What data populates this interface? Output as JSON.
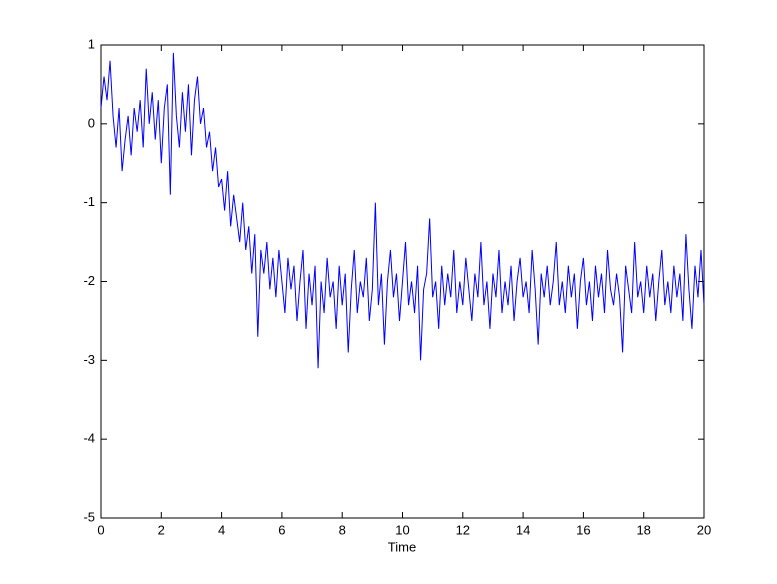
{
  "chart_data": {
    "type": "line",
    "xlabel": "Time",
    "color": "#0000ff",
    "xlim": [
      0,
      20
    ],
    "xticks": [
      0,
      2,
      4,
      6,
      8,
      10,
      12,
      14,
      16,
      18,
      20
    ],
    "ylim": [
      -5,
      1
    ],
    "yticks": [
      -5,
      -4,
      -3,
      -2,
      -1,
      0,
      1
    ],
    "x": [
      0,
      0.1,
      0.2,
      0.3,
      0.4,
      0.5,
      0.6,
      0.7,
      0.8,
      0.9,
      1,
      1.1,
      1.2,
      1.3,
      1.4,
      1.5,
      1.6,
      1.7,
      1.8,
      1.9,
      2,
      2.1,
      2.2,
      2.3,
      2.4,
      2.5,
      2.6,
      2.7,
      2.8,
      2.9,
      3,
      3.1,
      3.2,
      3.3,
      3.4,
      3.5,
      3.6,
      3.7,
      3.8,
      3.9,
      4,
      4.1,
      4.2,
      4.3,
      4.4,
      4.5,
      4.6,
      4.7,
      4.8,
      4.9,
      5,
      5.1,
      5.2,
      5.3,
      5.4,
      5.5,
      5.6,
      5.7,
      5.8,
      5.9,
      6,
      6.1,
      6.2,
      6.3,
      6.4,
      6.5,
      6.6,
      6.7,
      6.8,
      6.9,
      7,
      7.1,
      7.2,
      7.3,
      7.4,
      7.5,
      7.6,
      7.7,
      7.8,
      7.9,
      8,
      8.1,
      8.2,
      8.3,
      8.4,
      8.5,
      8.6,
      8.7,
      8.8,
      8.9,
      9,
      9.1,
      9.2,
      9.3,
      9.4,
      9.5,
      9.6,
      9.7,
      9.8,
      9.9,
      10,
      10.1,
      10.2,
      10.3,
      10.4,
      10.5,
      10.6,
      10.7,
      10.8,
      10.9,
      11,
      11.1,
      11.2,
      11.3,
      11.4,
      11.5,
      11.6,
      11.7,
      11.8,
      11.9,
      12,
      12.1,
      12.2,
      12.3,
      12.4,
      12.5,
      12.6,
      12.7,
      12.8,
      12.9,
      13,
      13.1,
      13.2,
      13.3,
      13.4,
      13.5,
      13.6,
      13.7,
      13.8,
      13.9,
      14,
      14.1,
      14.2,
      14.3,
      14.4,
      14.5,
      14.6,
      14.7,
      14.8,
      14.9,
      15,
      15.1,
      15.2,
      15.3,
      15.4,
      15.5,
      15.6,
      15.7,
      15.8,
      15.9,
      16,
      16.1,
      16.2,
      16.3,
      16.4,
      16.5,
      16.6,
      16.7,
      16.8,
      16.9,
      17,
      17.1,
      17.2,
      17.3,
      17.4,
      17.5,
      17.6,
      17.7,
      17.8,
      17.9,
      18,
      18.1,
      18.2,
      18.3,
      18.4,
      18.5,
      18.6,
      18.7,
      18.8,
      18.9,
      19,
      19.1,
      19.2,
      19.3,
      19.4,
      19.5,
      19.6,
      19.7,
      19.8,
      19.9,
      20
    ],
    "values": [
      0.2,
      0.6,
      0.3,
      0.8,
      0.1,
      -0.3,
      0.2,
      -0.6,
      -0.2,
      0.1,
      -0.4,
      0.2,
      -0.1,
      0.3,
      -0.3,
      0.7,
      0.0,
      0.4,
      -0.2,
      0.3,
      -0.5,
      0.2,
      0.5,
      -0.9,
      0.9,
      0.1,
      -0.3,
      0.4,
      -0.1,
      0.5,
      -0.4,
      0.3,
      0.6,
      0.0,
      0.2,
      -0.3,
      -0.1,
      -0.6,
      -0.3,
      -0.8,
      -0.7,
      -1.1,
      -0.6,
      -1.3,
      -0.9,
      -1.2,
      -1.5,
      -1.0,
      -1.6,
      -1.3,
      -1.9,
      -1.4,
      -2.7,
      -1.6,
      -1.9,
      -1.5,
      -2.1,
      -1.7,
      -2.2,
      -1.6,
      -2.0,
      -2.4,
      -1.7,
      -2.1,
      -1.8,
      -2.5,
      -2.0,
      -1.6,
      -2.6,
      -1.9,
      -2.3,
      -1.8,
      -3.1,
      -2.0,
      -2.4,
      -1.7,
      -2.2,
      -2.0,
      -2.6,
      -1.8,
      -2.3,
      -1.9,
      -2.9,
      -2.1,
      -1.6,
      -2.4,
      -2.0,
      -2.2,
      -1.7,
      -2.5,
      -2.1,
      -1.0,
      -2.3,
      -1.9,
      -2.8,
      -2.0,
      -1.6,
      -2.2,
      -1.9,
      -2.5,
      -2.0,
      -1.5,
      -2.3,
      -2.0,
      -2.4,
      -1.8,
      -3.0,
      -2.1,
      -1.9,
      -1.2,
      -2.2,
      -2.0,
      -2.6,
      -1.8,
      -2.3,
      -1.9,
      -2.2,
      -1.6,
      -2.4,
      -2.0,
      -2.3,
      -1.7,
      -2.1,
      -2.5,
      -1.9,
      -2.2,
      -1.5,
      -2.3,
      -2.0,
      -2.6,
      -1.9,
      -2.2,
      -1.6,
      -2.4,
      -2.0,
      -2.3,
      -1.8,
      -2.5,
      -2.0,
      -1.7,
      -2.2,
      -2.0,
      -2.4,
      -1.6,
      -2.1,
      -2.8,
      -1.9,
      -2.2,
      -1.8,
      -2.3,
      -2.0,
      -1.5,
      -2.3,
      -2.0,
      -2.4,
      -1.8,
      -2.2,
      -1.9,
      -2.6,
      -2.0,
      -1.7,
      -2.3,
      -2.0,
      -2.5,
      -1.8,
      -2.2,
      -1.9,
      -2.4,
      -1.6,
      -2.1,
      -2.3,
      -1.9,
      -2.2,
      -2.9,
      -1.8,
      -2.1,
      -2.4,
      -1.5,
      -2.2,
      -2.0,
      -2.4,
      -1.8,
      -2.2,
      -1.9,
      -2.5,
      -2.0,
      -1.6,
      -2.3,
      -2.0,
      -2.4,
      -1.8,
      -2.2,
      -1.9,
      -2.5,
      -1.4,
      -2.1,
      -2.6,
      -1.8,
      -2.2,
      -1.6,
      -2.3
    ]
  }
}
